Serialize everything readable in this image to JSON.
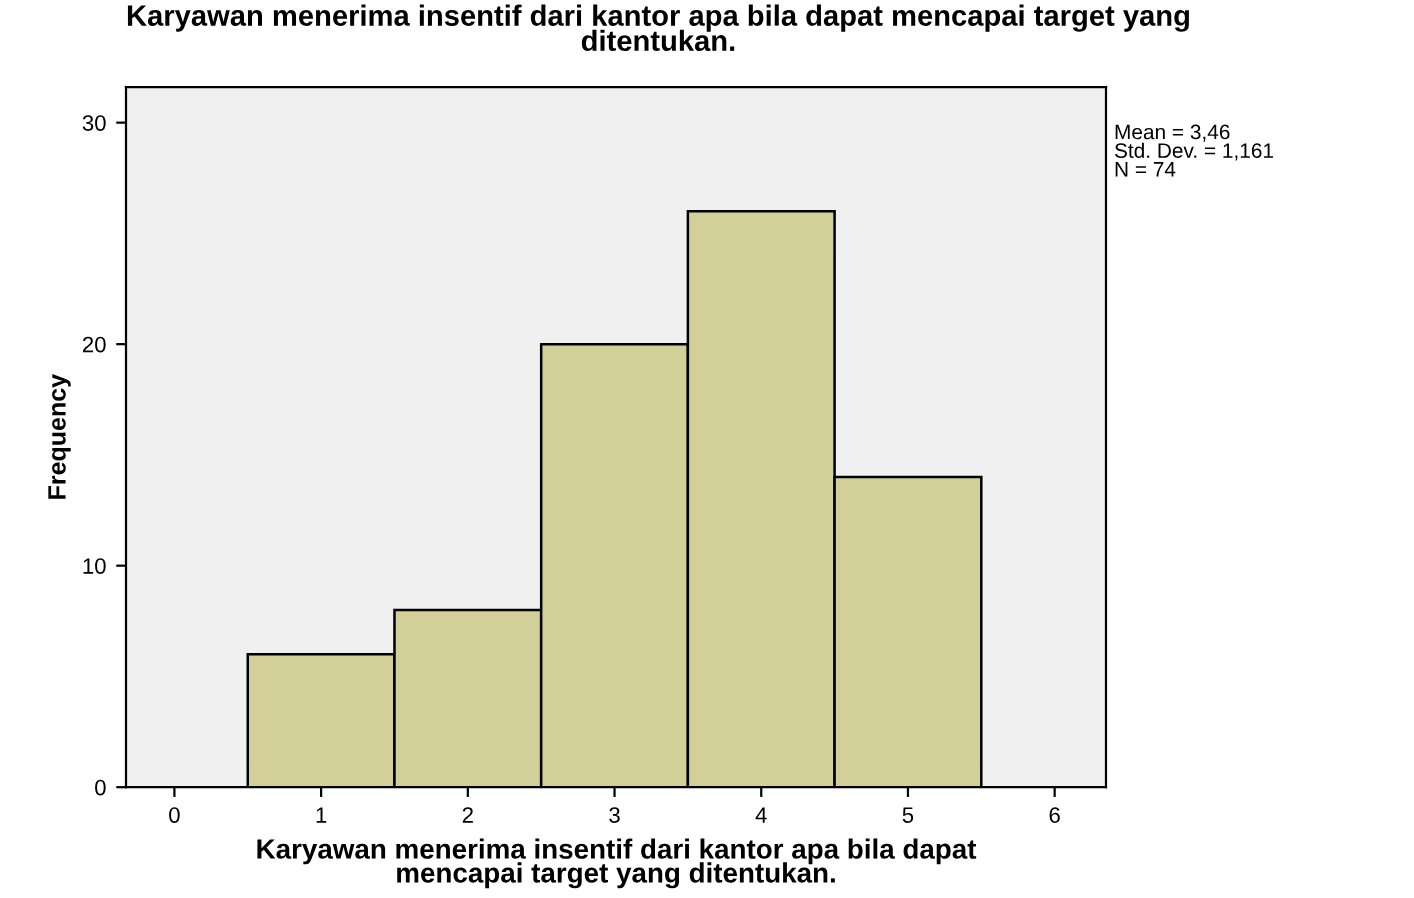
{
  "chart_data": {
    "type": "histogram",
    "title": "Karyawan menerima insentif dari kantor apa bila dapat mencapai target yang\nditentukan.",
    "xlabel": "Karyawan menerima insentif dari kantor apa bila dapat\nmencapai target yang ditentukan.",
    "ylabel": "Frequency",
    "bins": [
      0.5,
      1.5,
      2.5,
      3.5,
      4.5,
      5.5
    ],
    "values": [
      6,
      8,
      20,
      26,
      14
    ],
    "color": "#d3cf98",
    "xlim": [
      -0.33,
      6.35
    ],
    "xticks": [
      0,
      1,
      2,
      3,
      4,
      5,
      6
    ],
    "ylim": [
      0,
      31.6
    ],
    "yticks": [
      0,
      10,
      20,
      30
    ],
    "grid": false,
    "legend": false,
    "annotations": [
      "Mean = 3,46\nStd. Dev. = 1,161\nN = 74"
    ]
  }
}
